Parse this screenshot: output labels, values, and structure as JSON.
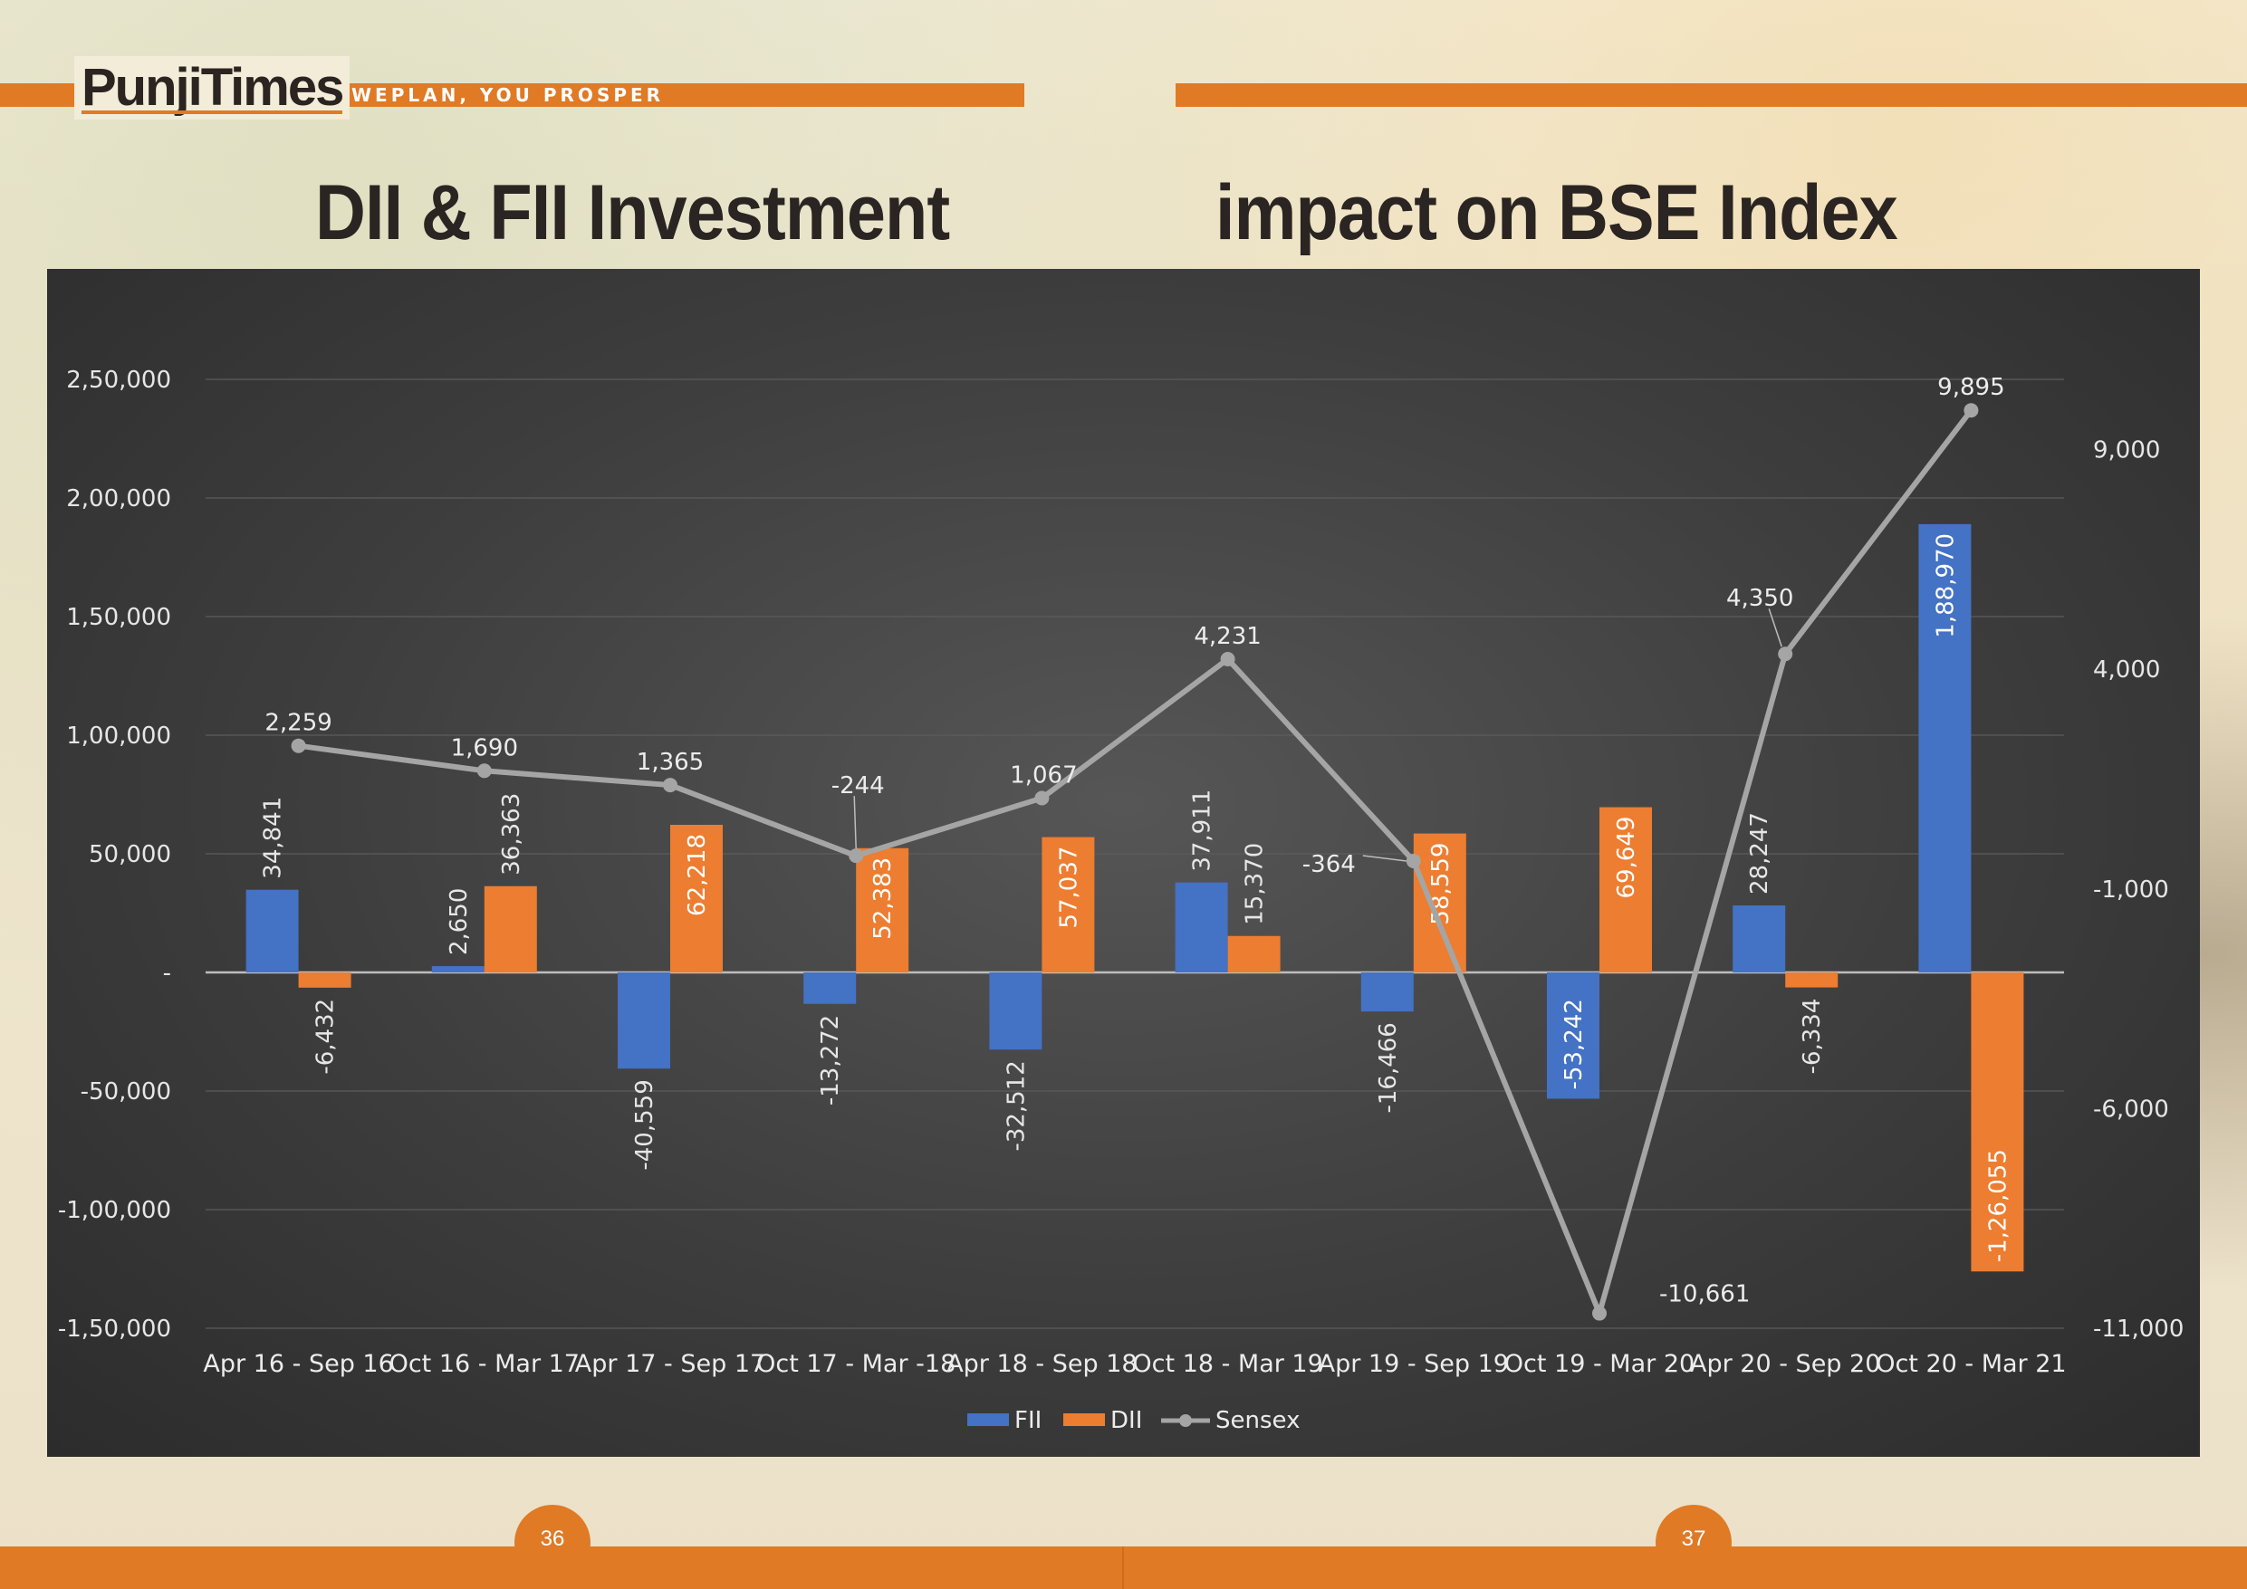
{
  "brand": {
    "logo": "PunjiTimes",
    "tagline": "WEPLAN, YOU PROSPER",
    "accent_color": "#e07a25"
  },
  "title": {
    "left": "DII & FII Investment",
    "right": "impact on BSE Index"
  },
  "pages": {
    "left": "36",
    "right": "37"
  },
  "chart_data": {
    "type": "bar",
    "categories": [
      "Apr 16 - Sep 16",
      "Oct 16 - Mar 17",
      "Apr 17 - Sep 17",
      "Oct 17 - Mar -18",
      "Apr 18 - Sep 18",
      "Oct 18 - Mar 19",
      "Apr 19 - Sep 19",
      "Oct 19 - Mar 20",
      "Apr 20 - Sep 20",
      "Oct 20 - Mar 21"
    ],
    "series": [
      {
        "name": "FII",
        "type": "bar",
        "axis": "left",
        "color": "#4472c4",
        "values": [
          34841,
          2650,
          -40559,
          -13272,
          -32512,
          37911,
          -16466,
          -53242,
          28247,
          188970
        ],
        "labels": [
          "34,841",
          "2,650",
          "-40,559",
          "-13,272",
          "-32,512",
          "37,911",
          "-16,466",
          "-53,242",
          "28,247",
          "1,88,970"
        ]
      },
      {
        "name": "DII",
        "type": "bar",
        "axis": "left",
        "color": "#ed7d31",
        "values": [
          -6432,
          36363,
          62218,
          52383,
          57037,
          15370,
          58559,
          69649,
          -6334,
          -126055
        ],
        "labels": [
          "-6,432",
          "36,363",
          "62,218",
          "52,383",
          "57,037",
          "15,370",
          "58,559",
          "69,649",
          "-6,334",
          "-1,26,055"
        ]
      },
      {
        "name": "Sensex",
        "type": "line",
        "axis": "right",
        "color": "#a5a5a5",
        "values": [
          2259,
          1690,
          1365,
          -244,
          1067,
          4231,
          -364,
          -10661,
          4350,
          9895
        ],
        "labels": [
          "2,259",
          "1,690",
          "1,365",
          "-244",
          "1,067",
          "4,231",
          "-364",
          "-10,661",
          "4,350",
          "9,895"
        ]
      }
    ],
    "y_left": {
      "ticks": [
        250000,
        200000,
        150000,
        100000,
        50000,
        0,
        -50000,
        -100000,
        -150000
      ],
      "tick_labels": [
        "2,50,000",
        "2,00,000",
        "1,50,000",
        "1,00,000",
        "50,000",
        "-",
        "-50,000",
        "-1,00,000",
        "-1,50,000"
      ],
      "ylim": [
        -150000,
        250000
      ]
    },
    "y_right": {
      "ticks": [
        9000,
        4000,
        -1000,
        -6000,
        -11000
      ],
      "tick_labels": [
        "9,000",
        "4,000",
        "-1,000",
        "-6,000",
        "-11,000"
      ],
      "ylim": [
        -11000,
        10600
      ]
    },
    "grid": true,
    "legend": "bottom-center",
    "legend_entries": [
      "FII",
      "DII",
      "Sensex"
    ]
  }
}
